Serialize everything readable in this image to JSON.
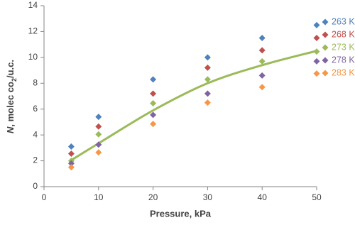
{
  "chart_data": {
    "type": "scatter",
    "xlabel": "Pressure, kPa",
    "ylabel": [
      "N",
      ", molec co",
      "2",
      "/u.c."
    ],
    "x": [
      5,
      10,
      20,
      30,
      40,
      50
    ],
    "xlim": [
      0,
      50
    ],
    "xticks": [
      0,
      10,
      20,
      30,
      40,
      50
    ],
    "ylim": [
      0,
      14
    ],
    "yticks": [
      0,
      2,
      4,
      6,
      8,
      10,
      12,
      14
    ],
    "grid": false,
    "legend": "right",
    "series": [
      {
        "name": "263 K",
        "color": "#4f81bd",
        "values": [
          3.1,
          5.4,
          8.3,
          10.0,
          11.5,
          12.5
        ]
      },
      {
        "name": "268 K",
        "color": "#c0504d",
        "values": [
          2.55,
          4.65,
          7.2,
          9.2,
          10.55,
          11.5
        ]
      },
      {
        "name": "273 K",
        "color": "#9bbb59",
        "values": [
          2.0,
          4.05,
          6.45,
          8.3,
          9.7,
          10.45
        ]
      },
      {
        "name": "278 K",
        "color": "#8064a2",
        "values": [
          1.8,
          3.25,
          5.55,
          7.2,
          8.6,
          9.7
        ]
      },
      {
        "name": "283 K",
        "color": "#f79646",
        "values": [
          1.5,
          2.65,
          4.85,
          6.5,
          7.7,
          8.75
        ]
      }
    ],
    "trendline": {
      "color": "#9bbb59",
      "x": [
        5,
        10,
        20,
        30,
        40,
        50
      ],
      "values": [
        2.05,
        3.35,
        5.9,
        8.0,
        9.4,
        10.5
      ]
    }
  }
}
